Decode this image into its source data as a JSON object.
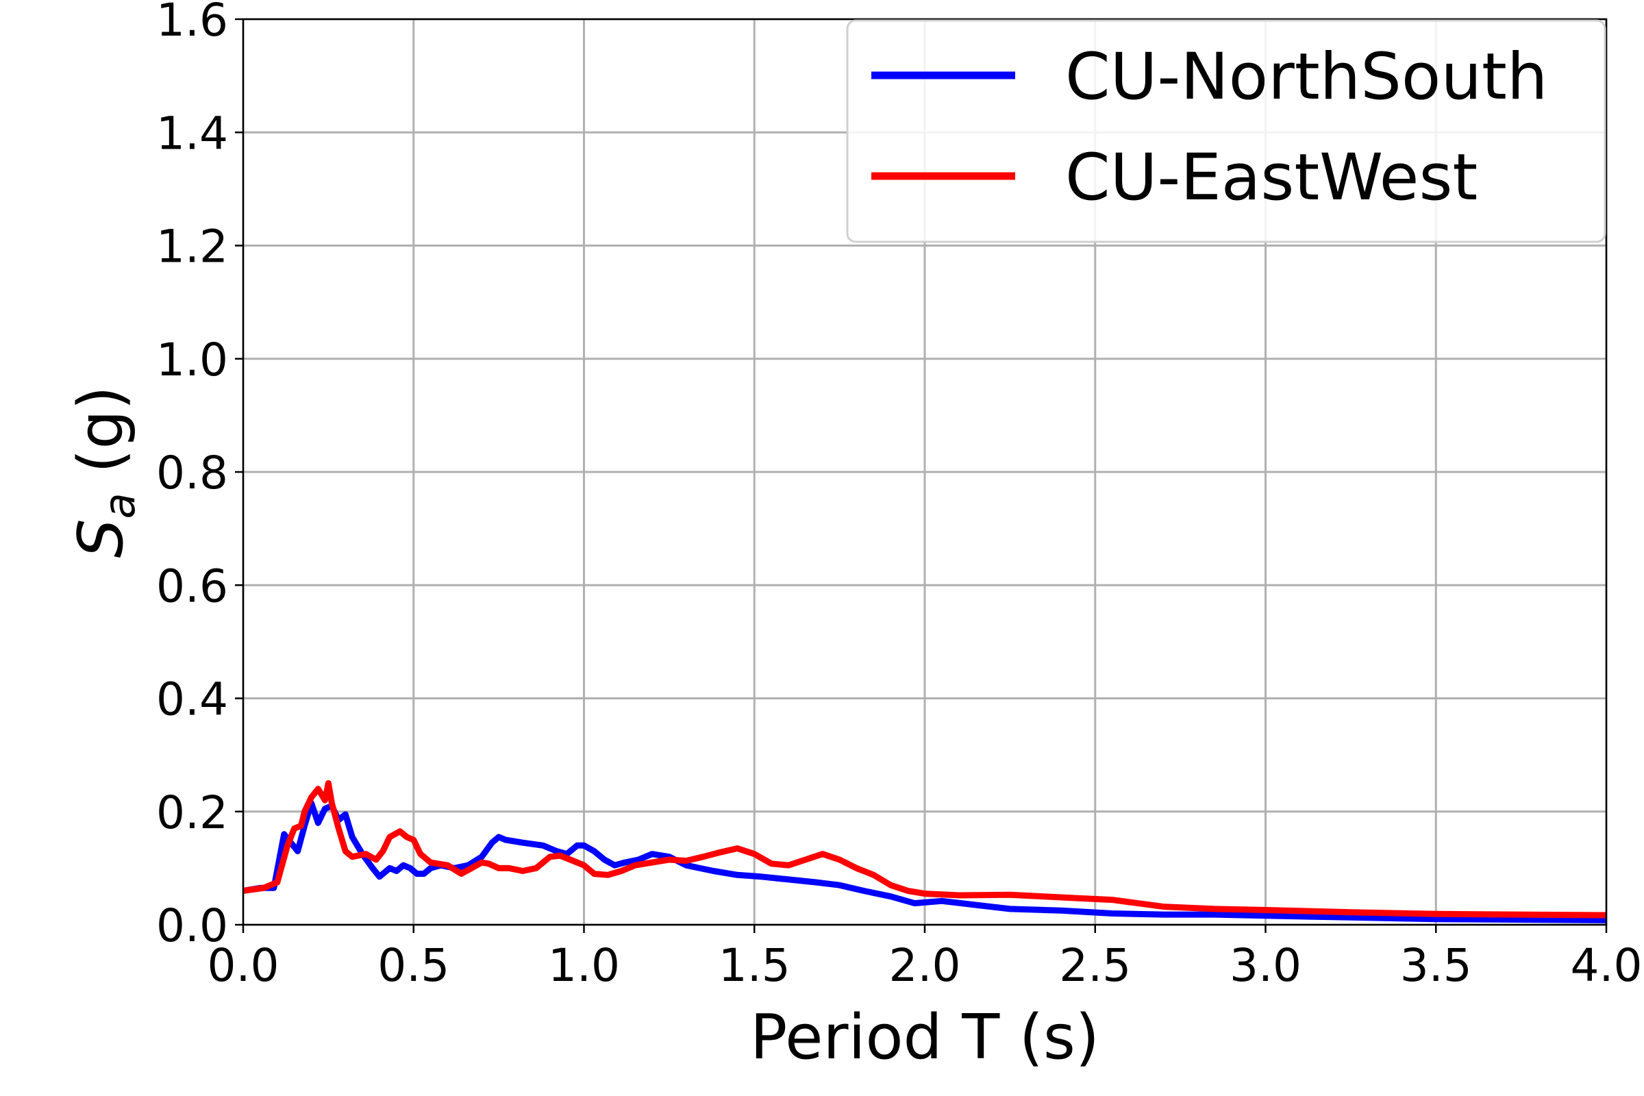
{
  "chart_data": {
    "type": "line",
    "title": "",
    "xlabel": "Period T (s)",
    "ylabel_main": "S",
    "ylabel_sub": "a",
    "ylabel_unit": " (g)",
    "xlim": [
      0.0,
      4.0
    ],
    "ylim": [
      0.0,
      1.6
    ],
    "xticks": [
      0.0,
      0.5,
      1.0,
      1.5,
      2.0,
      2.5,
      3.0,
      3.5,
      4.0
    ],
    "yticks": [
      0.0,
      0.2,
      0.4,
      0.6,
      0.8,
      1.0,
      1.2,
      1.4,
      1.6
    ],
    "xtick_labels": [
      "0.0",
      "0.5",
      "1.0",
      "1.5",
      "2.0",
      "2.5",
      "3.0",
      "3.5",
      "4.0"
    ],
    "ytick_labels": [
      "0.0",
      "0.2",
      "0.4",
      "0.6",
      "0.8",
      "1.0",
      "1.2",
      "1.4",
      "1.6"
    ],
    "grid": true,
    "legend_position": "top-right",
    "series": [
      {
        "name": "CU-NorthSouth",
        "color": "#0000ff",
        "x": [
          0.0,
          0.05,
          0.09,
          0.12,
          0.14,
          0.16,
          0.18,
          0.2,
          0.22,
          0.24,
          0.26,
          0.28,
          0.3,
          0.32,
          0.35,
          0.38,
          0.4,
          0.43,
          0.45,
          0.47,
          0.49,
          0.51,
          0.53,
          0.55,
          0.58,
          0.62,
          0.66,
          0.7,
          0.73,
          0.75,
          0.77,
          0.82,
          0.88,
          0.92,
          0.95,
          0.98,
          1.0,
          1.03,
          1.06,
          1.09,
          1.12,
          1.16,
          1.2,
          1.25,
          1.3,
          1.38,
          1.45,
          1.52,
          1.6,
          1.68,
          1.75,
          1.82,
          1.9,
          1.97,
          2.05,
          2.15,
          2.25,
          2.4,
          2.55,
          2.7,
          2.85,
          3.0,
          3.25,
          3.5,
          4.0
        ],
        "y": [
          0.06,
          0.065,
          0.065,
          0.16,
          0.145,
          0.13,
          0.175,
          0.215,
          0.18,
          0.205,
          0.21,
          0.185,
          0.195,
          0.155,
          0.125,
          0.1,
          0.085,
          0.1,
          0.095,
          0.105,
          0.1,
          0.09,
          0.09,
          0.1,
          0.105,
          0.1,
          0.105,
          0.12,
          0.145,
          0.155,
          0.15,
          0.145,
          0.14,
          0.13,
          0.125,
          0.14,
          0.14,
          0.13,
          0.115,
          0.105,
          0.11,
          0.115,
          0.125,
          0.12,
          0.105,
          0.095,
          0.088,
          0.085,
          0.08,
          0.075,
          0.07,
          0.06,
          0.05,
          0.038,
          0.042,
          0.035,
          0.028,
          0.025,
          0.02,
          0.018,
          0.018,
          0.016,
          0.013,
          0.01,
          0.008
        ]
      },
      {
        "name": "CU-EastWest",
        "color": "#ff0000",
        "x": [
          0.0,
          0.06,
          0.1,
          0.13,
          0.15,
          0.17,
          0.18,
          0.2,
          0.22,
          0.24,
          0.25,
          0.26,
          0.28,
          0.3,
          0.32,
          0.36,
          0.39,
          0.41,
          0.43,
          0.46,
          0.48,
          0.5,
          0.52,
          0.55,
          0.6,
          0.64,
          0.67,
          0.7,
          0.72,
          0.75,
          0.78,
          0.82,
          0.86,
          0.9,
          0.93,
          0.96,
          1.0,
          1.03,
          1.07,
          1.11,
          1.15,
          1.2,
          1.25,
          1.3,
          1.35,
          1.4,
          1.45,
          1.5,
          1.55,
          1.6,
          1.65,
          1.7,
          1.75,
          1.8,
          1.85,
          1.9,
          1.95,
          2.0,
          2.1,
          2.25,
          2.35,
          2.45,
          2.55,
          2.7,
          2.85,
          3.0,
          3.25,
          3.5,
          4.0
        ],
        "y": [
          0.06,
          0.065,
          0.075,
          0.14,
          0.17,
          0.175,
          0.2,
          0.225,
          0.24,
          0.22,
          0.25,
          0.215,
          0.17,
          0.13,
          0.12,
          0.125,
          0.115,
          0.13,
          0.155,
          0.165,
          0.155,
          0.15,
          0.125,
          0.11,
          0.105,
          0.09,
          0.1,
          0.11,
          0.108,
          0.1,
          0.1,
          0.095,
          0.1,
          0.12,
          0.122,
          0.115,
          0.105,
          0.09,
          0.088,
          0.095,
          0.105,
          0.11,
          0.115,
          0.113,
          0.12,
          0.128,
          0.135,
          0.125,
          0.108,
          0.105,
          0.115,
          0.125,
          0.115,
          0.1,
          0.088,
          0.07,
          0.06,
          0.055,
          0.052,
          0.053,
          0.05,
          0.047,
          0.044,
          0.032,
          0.028,
          0.026,
          0.022,
          0.019,
          0.017
        ]
      }
    ]
  }
}
